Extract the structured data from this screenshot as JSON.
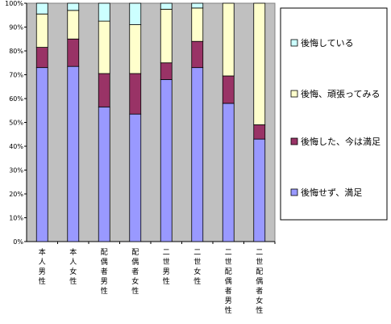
{
  "chart_data": {
    "type": "bar",
    "stacked": true,
    "categories": [
      "本人男性",
      "本人女性",
      "配偶者男性",
      "配偶者女性",
      "二世男性",
      "二世女性",
      "二世配偶者男性",
      "二世配偶者女性"
    ],
    "series": [
      {
        "name": "後悔せず、満足",
        "color": "#9999ff",
        "values": [
          73,
          73.5,
          56.5,
          53.5,
          68,
          73,
          58,
          43
        ]
      },
      {
        "name": "後悔した、今は満足",
        "color": "#993366",
        "values": [
          8.5,
          11.5,
          14,
          17,
          7,
          11,
          11.5,
          6
        ]
      },
      {
        "name": "後悔、頑張ってみる",
        "color": "#ffffcc",
        "values": [
          14,
          12,
          22,
          20.5,
          22.5,
          14,
          30.5,
          51
        ]
      },
      {
        "name": "後悔している",
        "color": "#ccffff",
        "values": [
          4.5,
          3,
          7.5,
          9,
          2.5,
          2,
          0,
          0
        ]
      }
    ],
    "yticks": [
      "0%",
      "10%",
      "20%",
      "30%",
      "40%",
      "50%",
      "60%",
      "70%",
      "80%",
      "90%",
      "100%"
    ],
    "ylim": [
      0,
      100
    ],
    "grid": false,
    "legend_position": "right",
    "plot_background": "#c0c0c0"
  }
}
